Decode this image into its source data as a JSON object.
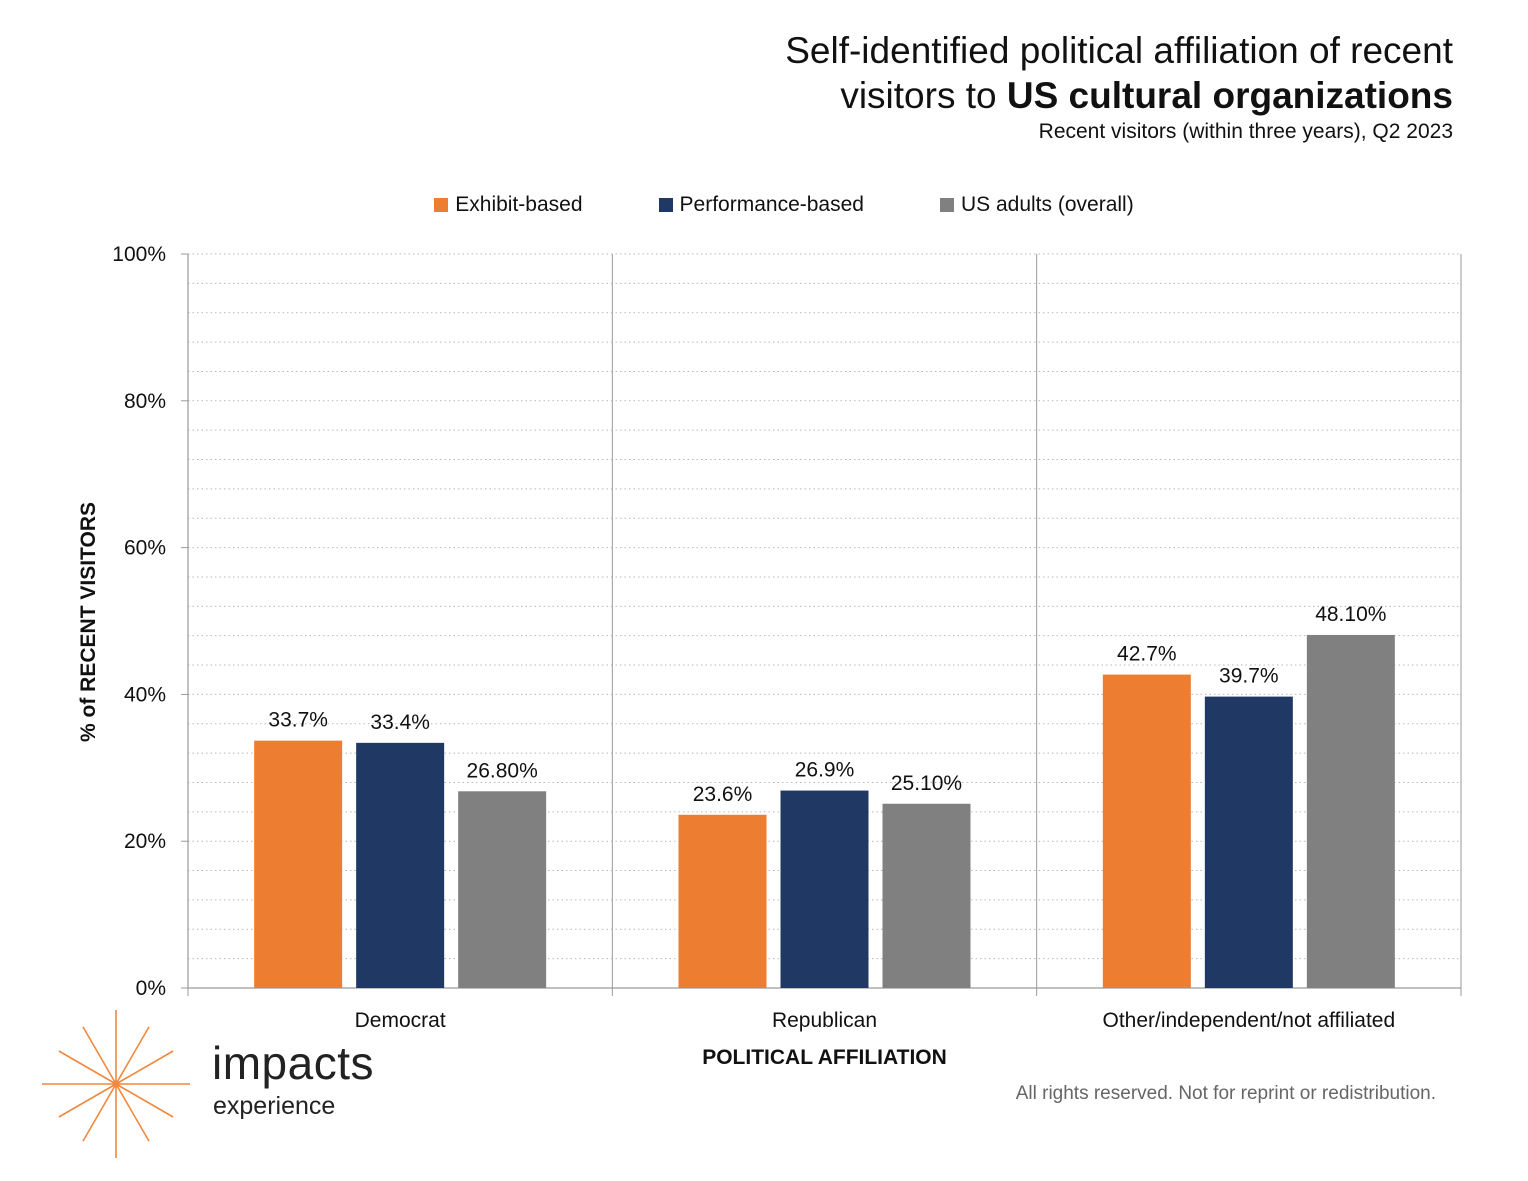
{
  "title": {
    "line1": "Self-identified political affiliation of recent",
    "line2_plain": "visitors to ",
    "line2_bold": "US cultural organizations"
  },
  "subtitle": "Recent visitors (within three years), Q2 2023",
  "footer": "All rights reserved. Not for reprint or redistribution.",
  "logo": {
    "word": "impacts",
    "sub": "experience",
    "icon": "starburst-icon",
    "color": "#F0883E"
  },
  "colors": {
    "exhibit": "#ED7D31",
    "performance": "#203864",
    "us_adults": "#808080"
  },
  "chart_data": {
    "type": "bar",
    "title": "Self-identified political affiliation of recent visitors to US cultural organizations",
    "subtitle": "Recent visitors (within three years), Q2 2023",
    "xlabel": "POLITICAL AFFILIATION",
    "ylabel": "%  of RECENT VISITORS",
    "categories": [
      "Democrat",
      "Republican",
      "Other/independent/not affiliated"
    ],
    "series": [
      {
        "name": "Exhibit-based",
        "values": [
          33.7,
          23.6,
          42.7
        ],
        "labels": [
          "33.7%",
          "23.6%",
          "42.7%"
        ],
        "color": "#ED7D31"
      },
      {
        "name": "Performance-based",
        "values": [
          33.4,
          26.9,
          39.7
        ],
        "labels": [
          "33.4%",
          "26.9%",
          "39.7%"
        ],
        "color": "#203864"
      },
      {
        "name": "US adults (overall)",
        "values": [
          26.8,
          25.1,
          48.1
        ],
        "labels": [
          "26.80%",
          "25.10%",
          "48.10%"
        ],
        "color": "#808080"
      }
    ],
    "yticks": [
      "0%",
      "20%",
      "40%",
      "60%",
      "80%",
      "100%"
    ],
    "ylim": [
      0,
      100
    ],
    "grid": "dotted horizontal minor lines every 4%",
    "legend_position": "top-center"
  }
}
